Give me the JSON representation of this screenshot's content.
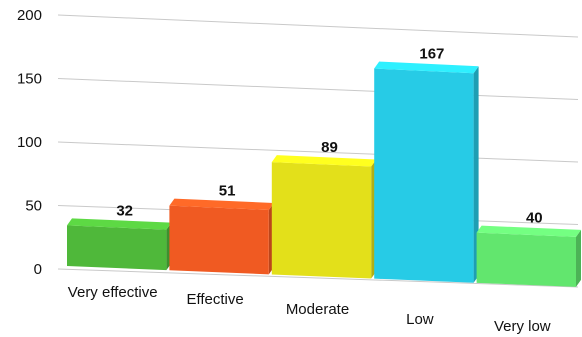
{
  "chart_data": {
    "type": "bar",
    "style": "3d-perspective",
    "title": "",
    "xlabel": "",
    "ylabel": "",
    "categories": [
      "Very effective",
      "Effective",
      "Moderate",
      "Low",
      "Very low"
    ],
    "values": [
      32,
      51,
      89,
      167,
      40
    ],
    "data_labels": [
      "32",
      "51",
      "89",
      "167",
      "40"
    ],
    "yticks": [
      0,
      50,
      100,
      150,
      200
    ],
    "ylim": [
      0,
      200
    ],
    "grid": true,
    "legend": "none",
    "colors": [
      "#4fb83a",
      "#f05a22",
      "#e3e01a",
      "#27cbe6",
      "#62e66e"
    ]
  }
}
